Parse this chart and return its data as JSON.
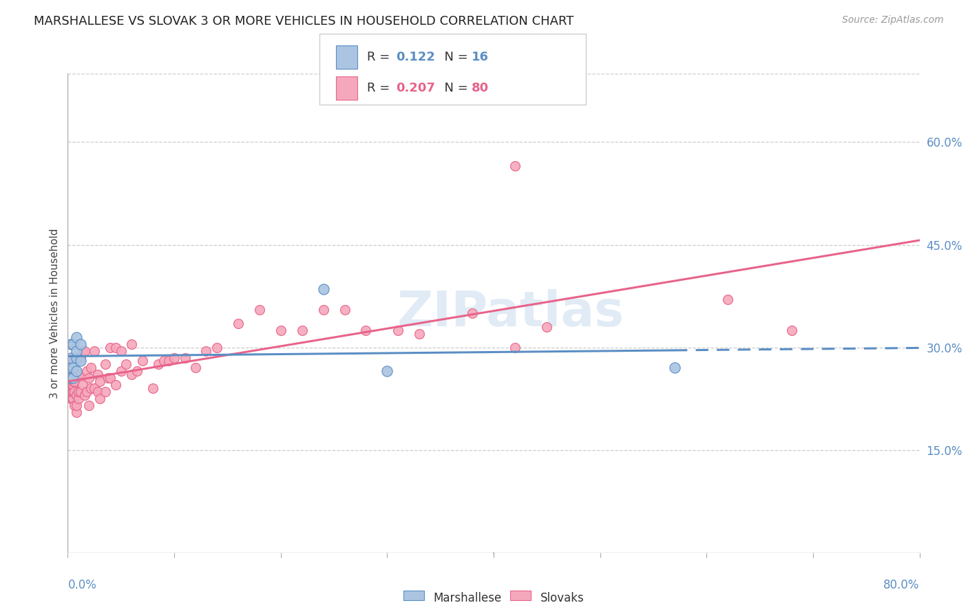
{
  "title": "MARSHALLESE VS SLOVAK 3 OR MORE VEHICLES IN HOUSEHOLD CORRELATION CHART",
  "source": "Source: ZipAtlas.com",
  "ylabel": "3 or more Vehicles in Household",
  "right_yticks": [
    "60.0%",
    "45.0%",
    "30.0%",
    "15.0%"
  ],
  "right_ytick_vals": [
    0.6,
    0.45,
    0.3,
    0.15
  ],
  "marshallese_color": "#aac4e2",
  "slovak_color": "#f5a8bc",
  "marshallese_line_color": "#5b8ec4",
  "slovak_line_color": "#e8638a",
  "marshallese_R": 0.122,
  "marshallese_N": 16,
  "slovak_R": 0.207,
  "slovak_N": 80,
  "xlim": [
    0.0,
    0.8
  ],
  "ylim": [
    0.0,
    0.7
  ],
  "marshallese_x": [
    0.003,
    0.003,
    0.003,
    0.003,
    0.005,
    0.005,
    0.005,
    0.008,
    0.008,
    0.008,
    0.008,
    0.012,
    0.012,
    0.24,
    0.3,
    0.57
  ],
  "marshallese_y": [
    0.255,
    0.27,
    0.285,
    0.305,
    0.255,
    0.27,
    0.305,
    0.265,
    0.285,
    0.295,
    0.315,
    0.28,
    0.305,
    0.385,
    0.265,
    0.27
  ],
  "slovak_x": [
    0.002,
    0.002,
    0.003,
    0.003,
    0.003,
    0.004,
    0.004,
    0.004,
    0.004,
    0.005,
    0.005,
    0.005,
    0.005,
    0.005,
    0.006,
    0.006,
    0.006,
    0.008,
    0.008,
    0.008,
    0.008,
    0.01,
    0.01,
    0.01,
    0.012,
    0.012,
    0.014,
    0.014,
    0.016,
    0.016,
    0.018,
    0.018,
    0.02,
    0.02,
    0.022,
    0.022,
    0.025,
    0.025,
    0.028,
    0.028,
    0.03,
    0.03,
    0.035,
    0.035,
    0.038,
    0.04,
    0.04,
    0.045,
    0.045,
    0.05,
    0.05,
    0.055,
    0.06,
    0.06,
    0.065,
    0.07,
    0.08,
    0.085,
    0.09,
    0.095,
    0.1,
    0.11,
    0.12,
    0.13,
    0.14,
    0.16,
    0.18,
    0.2,
    0.22,
    0.24,
    0.26,
    0.28,
    0.31,
    0.33,
    0.38,
    0.42,
    0.45,
    0.62,
    0.68,
    0.42
  ],
  "slovak_y": [
    0.235,
    0.255,
    0.225,
    0.235,
    0.255,
    0.225,
    0.235,
    0.245,
    0.285,
    0.225,
    0.235,
    0.245,
    0.25,
    0.26,
    0.215,
    0.235,
    0.25,
    0.205,
    0.215,
    0.23,
    0.26,
    0.225,
    0.235,
    0.26,
    0.235,
    0.285,
    0.245,
    0.295,
    0.23,
    0.295,
    0.235,
    0.265,
    0.215,
    0.255,
    0.24,
    0.27,
    0.24,
    0.295,
    0.235,
    0.26,
    0.225,
    0.25,
    0.235,
    0.275,
    0.255,
    0.255,
    0.3,
    0.245,
    0.3,
    0.265,
    0.295,
    0.275,
    0.26,
    0.305,
    0.265,
    0.28,
    0.24,
    0.275,
    0.28,
    0.28,
    0.285,
    0.285,
    0.27,
    0.295,
    0.3,
    0.335,
    0.355,
    0.325,
    0.325,
    0.355,
    0.355,
    0.325,
    0.325,
    0.32,
    0.35,
    0.3,
    0.33,
    0.37,
    0.325,
    0.565
  ],
  "background_color": "#ffffff",
  "grid_color": "#cccccc",
  "tick_color": "#5b8ec4",
  "watermark_text": "ZIPatlas",
  "watermark_color": "#c5d8ec",
  "watermark_alpha": 0.5
}
